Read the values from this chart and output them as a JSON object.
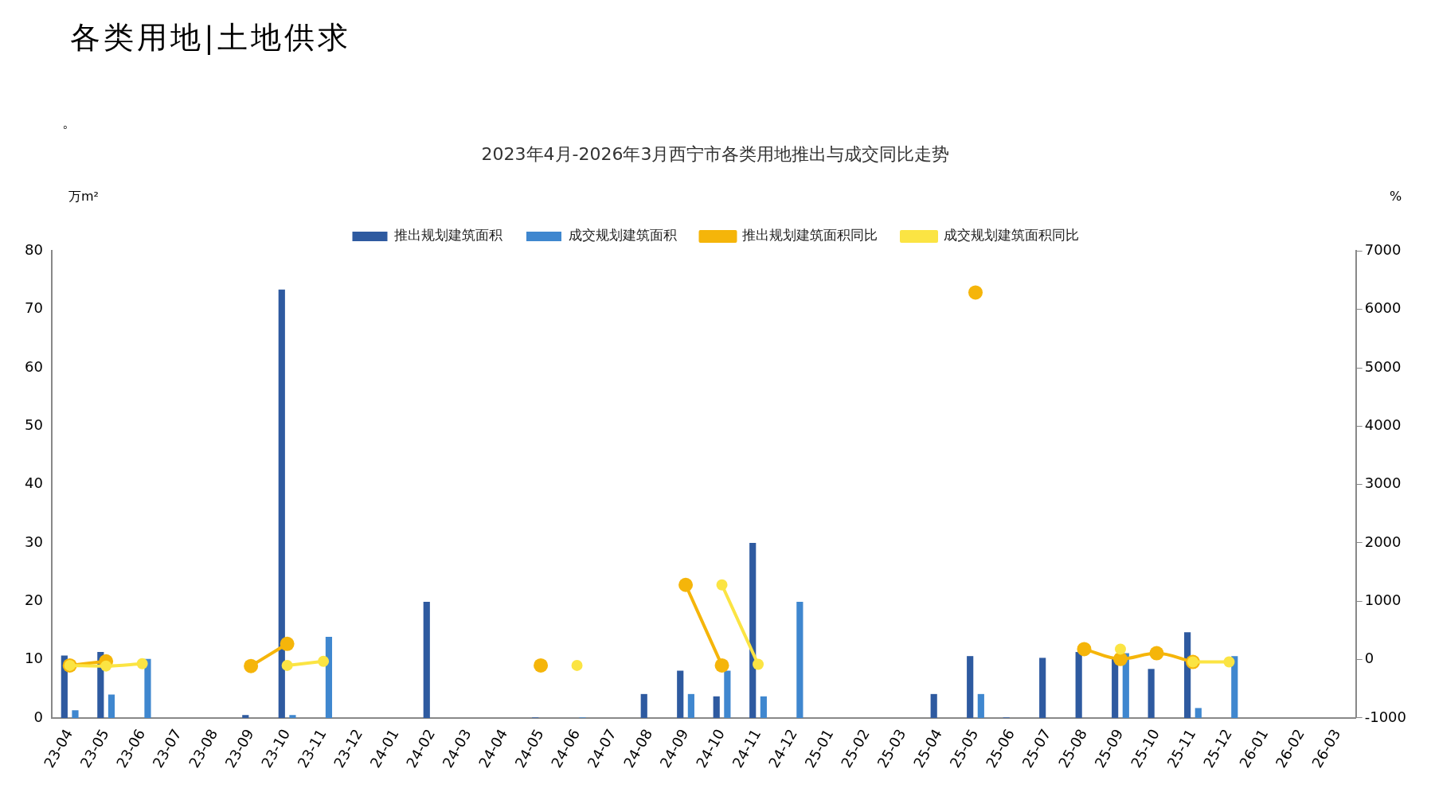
{
  "chart_data": {
    "type": "bar",
    "title": "2023年4月-2026年3月西宁市各类用地推出与成交同比走势",
    "ylabel": "万m²",
    "y2label": "%",
    "annotations": [
      "各类用地|土地供求",
      "。"
    ],
    "categories": [
      "23-04",
      "23-05",
      "23-06",
      "23-07",
      "23-08",
      "23-09",
      "23-10",
      "23-11",
      "23-12",
      "24-01",
      "24-02",
      "24-03",
      "24-04",
      "24-05",
      "24-06",
      "24-07",
      "24-08",
      "24-09",
      "24-10",
      "24-11",
      "24-12",
      "25-01",
      "25-02",
      "25-03",
      "25-04",
      "25-05",
      "25-06",
      "25-07",
      "25-08",
      "25-09",
      "25-10",
      "25-11",
      "25-12",
      "26-01",
      "26-02",
      "26-03"
    ],
    "series": [
      {
        "name": "推出规划建筑面积",
        "color": "#2e5aa0",
        "values": [
          10.7,
          11.3,
          null,
          null,
          null,
          0.5,
          73.4,
          null,
          null,
          null,
          19.9,
          null,
          null,
          0.1,
          null,
          null,
          4.1,
          8.1,
          3.7,
          30.0,
          null,
          null,
          null,
          null,
          4.1,
          10.6,
          0.1,
          10.3,
          11.3,
          10.2,
          8.4,
          14.7,
          null,
          null,
          null,
          null
        ]
      },
      {
        "name": "成交规划建筑面积",
        "color": "#3f87cf",
        "values": [
          1.3,
          4.0,
          10.1,
          null,
          null,
          null,
          0.5,
          13.9,
          null,
          null,
          null,
          null,
          null,
          null,
          0.1,
          null,
          null,
          4.1,
          8.1,
          3.7,
          19.9,
          null,
          null,
          null,
          null,
          4.1,
          null,
          null,
          null,
          11.1,
          null,
          1.7,
          10.6,
          null,
          null,
          null
        ]
      },
      {
        "name": "推出规划建筑面积同比",
        "type": "line",
        "axis": "y2",
        "color": "#f5b50a",
        "values": [
          -100,
          -30,
          null,
          null,
          null,
          -110,
          270,
          null,
          null,
          null,
          null,
          null,
          null,
          -100,
          null,
          null,
          null,
          1280,
          -100,
          null,
          null,
          null,
          null,
          null,
          null,
          6290,
          null,
          null,
          180,
          10,
          110,
          -40,
          null,
          null,
          null,
          null
        ]
      },
      {
        "name": "成交规划建筑面积同比",
        "type": "line",
        "axis": "y2",
        "color": "#fbe443",
        "values": [
          -100,
          -110,
          -70,
          null,
          null,
          null,
          -100,
          -30,
          null,
          null,
          null,
          null,
          null,
          null,
          -100,
          null,
          null,
          null,
          1280,
          -80,
          null,
          null,
          null,
          null,
          null,
          null,
          null,
          null,
          null,
          180,
          null,
          -40,
          -40,
          null,
          null,
          null
        ]
      }
    ],
    "ylim": [
      0,
      80
    ],
    "yticks": [
      0,
      10,
      20,
      30,
      40,
      50,
      60,
      70,
      80
    ],
    "y2lim": [
      -1000,
      7000
    ],
    "y2ticks": [
      -1000,
      0,
      1000,
      2000,
      3000,
      4000,
      5000,
      6000,
      7000
    ],
    "grid": false,
    "legend": "top",
    "marker": "circle",
    "line_style": "solid"
  }
}
